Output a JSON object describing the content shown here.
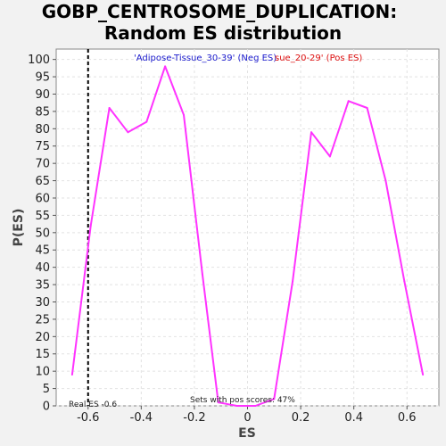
{
  "chart_data": {
    "type": "line",
    "title": "GOBP_CENTROSOME_DUPLICATION:",
    "subtitle": "Random ES distribution",
    "xlabel": "ES",
    "ylabel": "P(ES)",
    "xlim": [
      -0.72,
      0.72
    ],
    "ylim": [
      0,
      103
    ],
    "x_ticks": [
      -0.6,
      -0.4,
      -0.2,
      0.0,
      0.2,
      0.4,
      0.6
    ],
    "x_tick_labels": [
      "-0.6",
      "-0.4",
      "-0.2",
      "0",
      "0.2",
      "0.4",
      "0.6"
    ],
    "y_ticks": [
      0,
      5,
      10,
      15,
      20,
      25,
      30,
      35,
      40,
      45,
      50,
      55,
      60,
      65,
      70,
      75,
      80,
      85,
      90,
      95,
      100
    ],
    "y_tick_labels": [
      "0",
      "5",
      "10",
      "15",
      "20",
      "25",
      "30",
      "35",
      "40",
      "45",
      "50",
      "55",
      "60",
      "65",
      "70",
      "75",
      "80",
      "85",
      "90",
      "95",
      "100"
    ],
    "grid": true,
    "series": [
      {
        "color": "#ff33ff",
        "x": [
          -0.66,
          -0.59,
          -0.52,
          -0.45,
          -0.38,
          -0.31,
          -0.24,
          -0.17,
          -0.11,
          -0.04,
          0.03,
          0.1,
          0.17,
          0.24,
          0.31,
          0.38,
          0.45,
          0.52,
          0.59,
          0.66
        ],
        "y": [
          9,
          52,
          86,
          79,
          82,
          98,
          84,
          38,
          1,
          0,
          0,
          2,
          36,
          79,
          72,
          88,
          86,
          65,
          36,
          9
        ]
      }
    ],
    "real_es": -0.6,
    "real_es_label": "Real ES -0.6",
    "legend": {
      "neg_label": "'Adipose-Tissue_30-39' (Neg ES)",
      "pos_label": "sue_20-29' (Pos ES)",
      "neg_color": "#1a1acc",
      "pos_color": "#dd1111",
      "placement": "top"
    },
    "annotation": "Sets with pos scores: 47%"
  }
}
